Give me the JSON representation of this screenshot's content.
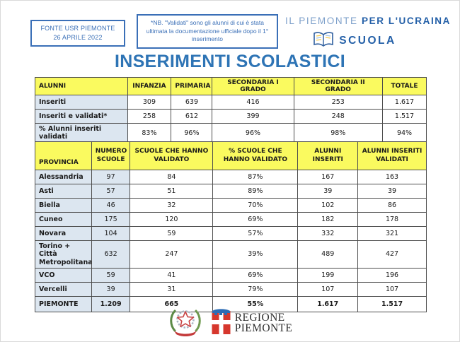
{
  "header": {
    "source_box": {
      "line1": "FONTE USR PIEMONTE",
      "line2": "26 APRILE 2022"
    },
    "note_box": {
      "text": "*NB. \"Validati\" sono gli alunni di cui è stata ultimata la documentazione ufficiale dopo il 1° inserimento"
    },
    "logo": {
      "line1_light": "IL PIEMONTE",
      "line1_bold": "PER L'UCRAINA",
      "line2": "SCUOLA",
      "book_icon": "open-book-icon"
    }
  },
  "title": "INSERIMENTI SCOLASTICI",
  "table1": {
    "columns": [
      "ALUNNI",
      "INFANZIA",
      "PRIMARIA",
      "SECONDARIA I GRADO",
      "SECONDARIA II GRADO",
      "TOTALE"
    ],
    "rows": [
      {
        "label": "Inseriti",
        "values": [
          "309",
          "639",
          "416",
          "253",
          "1.617"
        ]
      },
      {
        "label": "Inseriti e validati*",
        "values": [
          "258",
          "612",
          "399",
          "248",
          "1.517"
        ]
      },
      {
        "label": "% Alunni inseriti validati",
        "values": [
          "83%",
          "96%",
          "96%",
          "98%",
          "94%"
        ]
      }
    ]
  },
  "table2": {
    "columns": [
      "PROVINCIA",
      "NUMERO SCUOLE",
      "SCUOLE CHE HANNO VALIDATO",
      "% SCUOLE CHE HANNO VALIDATO",
      "ALUNNI INSERITI",
      "ALUNNI INSERITI VALIDATI"
    ],
    "rows": [
      {
        "label": "Alessandria",
        "values": [
          "97",
          "84",
          "87%",
          "167",
          "163"
        ]
      },
      {
        "label": "Asti",
        "values": [
          "57",
          "51",
          "89%",
          "39",
          "39"
        ]
      },
      {
        "label": "Biella",
        "values": [
          "46",
          "32",
          "70%",
          "102",
          "86"
        ]
      },
      {
        "label": "Cuneo",
        "values": [
          "175",
          "120",
          "69%",
          "182",
          "178"
        ]
      },
      {
        "label": "Novara",
        "values": [
          "104",
          "59",
          "57%",
          "332",
          "321"
        ]
      },
      {
        "label": "Torino + Città Metropolitana",
        "values": [
          "632",
          "247",
          "39%",
          "489",
          "427"
        ]
      },
      {
        "label": "VCO",
        "values": [
          "59",
          "41",
          "69%",
          "199",
          "196"
        ]
      },
      {
        "label": "Vercelli",
        "values": [
          "39",
          "31",
          "79%",
          "107",
          "107"
        ]
      }
    ],
    "total_row": {
      "label": "PIEMONTE",
      "values": [
        "1.209",
        "665",
        "55%",
        "1.617",
        "1.517"
      ]
    }
  },
  "footer": {
    "emblem_icon": "italy-republic-emblem-icon",
    "shield_icon": "regione-piemonte-shield-icon",
    "regione_line1": "REGIONE",
    "regione_line2": "PIEMONTE"
  },
  "colors": {
    "title_blue": "#2e74b5",
    "box_blue": "#3a6fb7",
    "logo_light_blue": "#7fa1cb",
    "logo_dark_blue": "#2460a8",
    "header_yellow": "#fafa5f",
    "cell_light_blue": "#dce6f0",
    "table_border": "#4d4d4d",
    "shield_red": "#d6372d",
    "lambello_blue": "#2d6cb5"
  }
}
